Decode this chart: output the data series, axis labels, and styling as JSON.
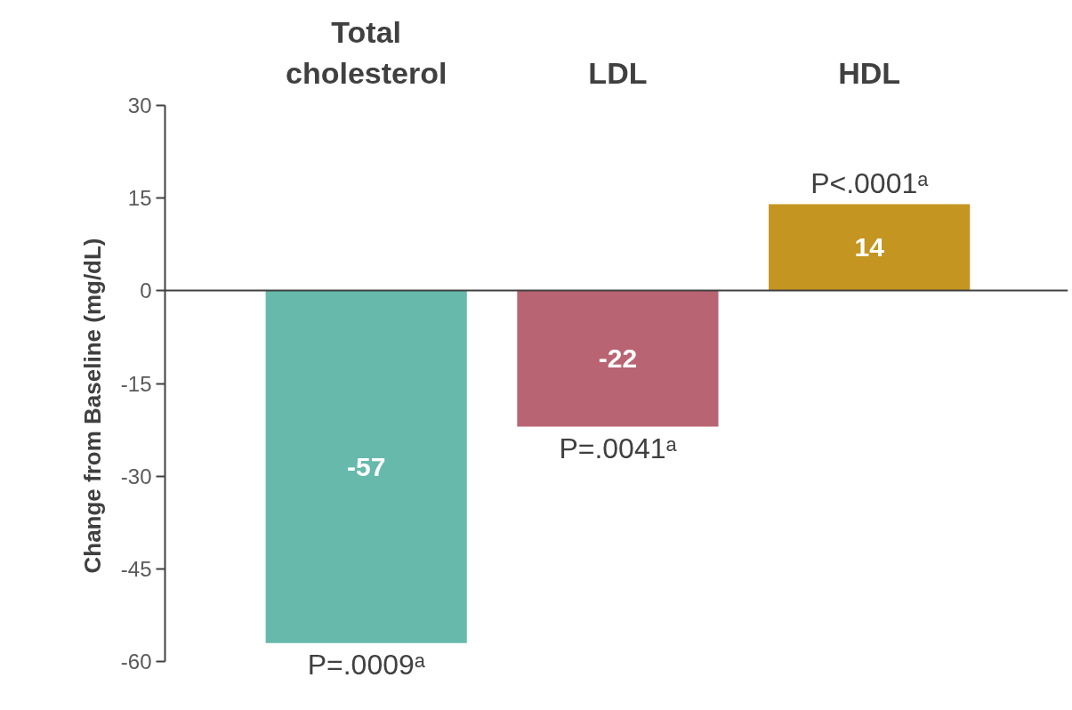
{
  "chart_data": {
    "type": "bar",
    "ylabel": "Change from Baseline (mg/dL)",
    "categories": [
      "Total cholesterol",
      "LDL",
      "HDL"
    ],
    "values": [
      -57,
      -22,
      14
    ],
    "colors": [
      "#66b9ab",
      "#b96472",
      "#c49521"
    ],
    "ylim": [
      -60,
      30
    ],
    "yticks": [
      -60,
      -45,
      -30,
      -15,
      0,
      15,
      30
    ],
    "data_labels": true,
    "annotations": [
      {
        "text": "P=.0009ᵃ",
        "x": "Total cholesterol",
        "y": -57
      },
      {
        "text": "P=.0041ᵃ",
        "x": "LDL",
        "y": -22
      },
      {
        "text": "P<.0001ᵃ",
        "x": "HDL",
        "y": 14
      }
    ]
  }
}
